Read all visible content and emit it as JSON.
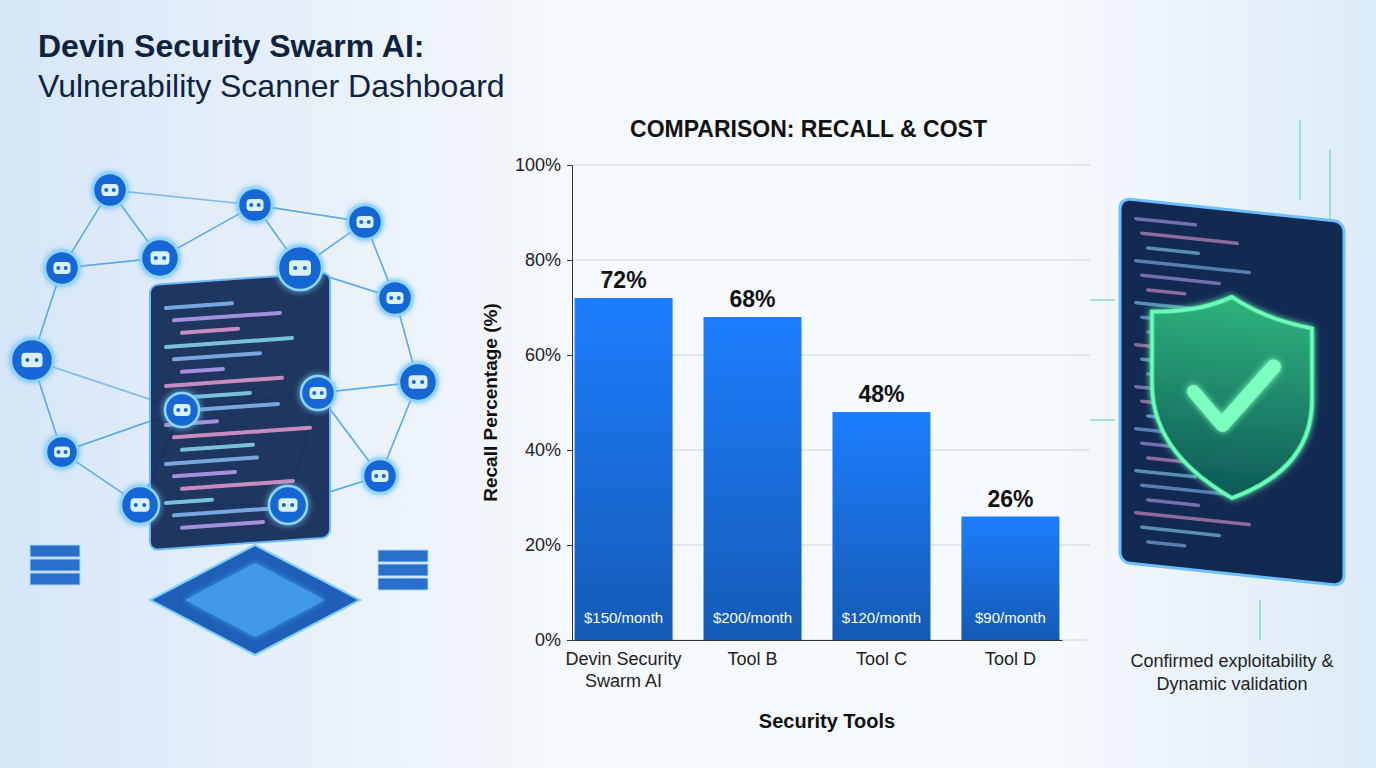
{
  "header": {
    "title": "Devin Security Swarm AI:",
    "subtitle": "Vulnerability Scanner Dashboard"
  },
  "chart_data": {
    "type": "bar",
    "title": "COMPARISON: RECALL & COST",
    "x_label": "Security Tools",
    "y_label": "Recall Percentage (%)",
    "categories": [
      "Devin Security Swarm AI",
      "Tool B",
      "Tool C",
      "Tool D"
    ],
    "values": [
      72,
      68,
      48,
      26
    ],
    "value_labels": [
      "72%",
      "68%",
      "48%",
      "26%"
    ],
    "data_labels": true,
    "cost_labels": [
      "$150/month",
      "$200/month",
      "$120/month",
      "$90/month"
    ],
    "note": "Confirmed exploitability & Dynamic validation",
    "color": "#1a73e8",
    "ylim": [
      0,
      100
    ],
    "yticks": [
      {
        "value": 0,
        "label": "0%"
      },
      {
        "value": 20,
        "label": "20%"
      },
      {
        "value": 40,
        "label": "40%"
      },
      {
        "value": 60,
        "label": "60%"
      },
      {
        "value": 80,
        "label": "80%"
      },
      {
        "value": 100,
        "label": "100%"
      }
    ],
    "grid": true
  }
}
